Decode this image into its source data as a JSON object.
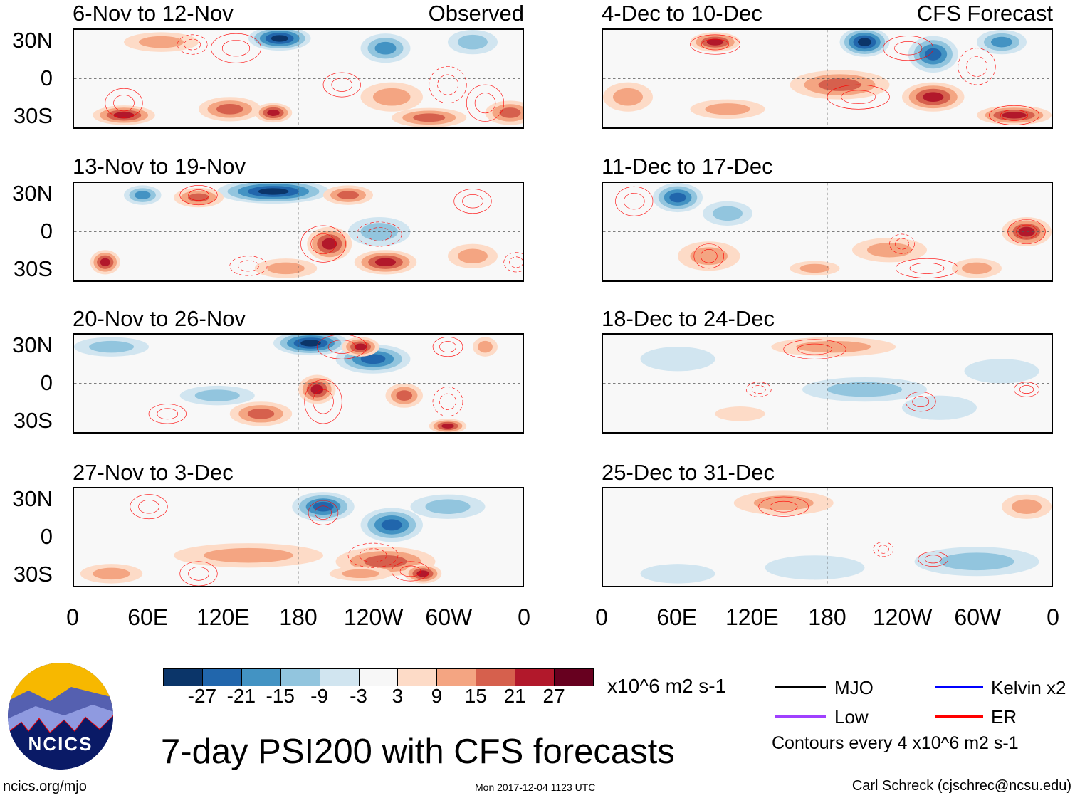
{
  "title": "7-day PSI200 with CFS forecasts",
  "footer": {
    "site": "ncics.org/mjo",
    "timestamp": "Mon 2017-12-04 1123 UTC",
    "author": "Carl Schreck (cjschrec@ncsu.edu)",
    "logo_text": "NCICS"
  },
  "axes": {
    "y_ticks": [
      "30N",
      "0",
      "30S"
    ],
    "x_ticks": [
      "0",
      "60E",
      "120E",
      "180",
      "120W",
      "60W",
      "0"
    ]
  },
  "column_labels": {
    "left": "Observed",
    "right": "CFS Forecast"
  },
  "colorbar": {
    "units": "x10^6 m2 s-1",
    "labels": [
      "-27",
      "-21",
      "-15",
      "-9",
      "-3",
      "3",
      "9",
      "15",
      "21",
      "27"
    ],
    "colors": [
      "#0b3569",
      "#2166ac",
      "#4393c3",
      "#92c5de",
      "#d1e5f0",
      "#f7f7f7",
      "#fddbc7",
      "#f4a582",
      "#d6604d",
      "#b2182b",
      "#67001f"
    ]
  },
  "legend": {
    "items": [
      {
        "label": "MJO",
        "color": "#000000"
      },
      {
        "label": "Kelvin x2",
        "color": "#0000ff"
      },
      {
        "label": "Low",
        "color": "#a040ff"
      },
      {
        "label": "ER",
        "color": "#ff0000"
      }
    ],
    "note": "Contours every 4 x10^6 m2 s-1"
  },
  "chart_data": {
    "type": "heatmap",
    "variable": "PSI200 anomaly",
    "lon_range": [
      0,
      360
    ],
    "lat_range": [
      -40,
      40
    ],
    "panels": [
      {
        "title": "6-Nov to 12-Nov",
        "column": "left",
        "anomalies": [
          [
            165,
            33,
            -28,
            25,
            10
          ],
          [
            250,
            25,
            -18,
            20,
            12
          ],
          [
            320,
            30,
            -15,
            20,
            10
          ],
          [
            40,
            -30,
            24,
            25,
            8
          ],
          [
            125,
            -25,
            20,
            25,
            10
          ],
          [
            160,
            -28,
            22,
            15,
            8
          ],
          [
            255,
            -15,
            14,
            25,
            12
          ],
          [
            285,
            -32,
            18,
            30,
            8
          ],
          [
            350,
            -28,
            16,
            20,
            10
          ],
          [
            70,
            30,
            10,
            30,
            8
          ]
        ],
        "contours": [
          [
            130,
            25,
            20,
            12,
            1
          ],
          [
            215,
            -5,
            15,
            10,
            1
          ],
          [
            40,
            -20,
            15,
            12,
            1
          ],
          [
            300,
            -5,
            15,
            15,
            -1
          ],
          [
            330,
            -20,
            15,
            15,
            1
          ],
          [
            95,
            28,
            12,
            8,
            -1
          ]
        ]
      },
      {
        "title": "13-Nov to 19-Nov",
        "column": "left",
        "anomalies": [
          [
            160,
            33,
            -30,
            45,
            10
          ],
          [
            55,
            30,
            -18,
            15,
            8
          ],
          [
            100,
            28,
            16,
            20,
            8
          ],
          [
            220,
            30,
            16,
            20,
            8
          ],
          [
            245,
            0,
            -12,
            25,
            12
          ],
          [
            205,
            -10,
            26,
            18,
            14
          ],
          [
            250,
            -25,
            22,
            25,
            10
          ],
          [
            25,
            -25,
            26,
            12,
            10
          ],
          [
            170,
            -30,
            14,
            25,
            8
          ],
          [
            320,
            -20,
            14,
            20,
            10
          ]
        ],
        "contours": [
          [
            100,
            30,
            15,
            8,
            1
          ],
          [
            200,
            -10,
            18,
            15,
            1
          ],
          [
            245,
            -2,
            18,
            10,
            -1
          ],
          [
            320,
            25,
            15,
            10,
            1
          ],
          [
            355,
            -25,
            10,
            8,
            -1
          ],
          [
            140,
            -28,
            15,
            8,
            -1
          ]
        ]
      },
      {
        "title": "20-Nov to 26-Nov",
        "column": "left",
        "anomalies": [
          [
            190,
            33,
            -30,
            30,
            10
          ],
          [
            240,
            20,
            -22,
            30,
            12
          ],
          [
            230,
            30,
            26,
            15,
            8
          ],
          [
            115,
            -10,
            -10,
            30,
            8
          ],
          [
            195,
            -5,
            22,
            15,
            12
          ],
          [
            265,
            -10,
            20,
            15,
            10
          ],
          [
            150,
            -25,
            20,
            25,
            10
          ],
          [
            300,
            -35,
            22,
            15,
            6
          ],
          [
            30,
            30,
            -12,
            30,
            8
          ],
          [
            330,
            30,
            12,
            10,
            8
          ]
        ],
        "contours": [
          [
            215,
            30,
            20,
            10,
            1
          ],
          [
            200,
            -15,
            15,
            18,
            1
          ],
          [
            75,
            -25,
            15,
            8,
            1
          ],
          [
            300,
            30,
            12,
            8,
            1
          ],
          [
            300,
            -15,
            12,
            12,
            -1
          ]
        ]
      },
      {
        "title": "27-Nov to 3-Dec",
        "column": "left",
        "anomalies": [
          [
            200,
            25,
            -22,
            25,
            12
          ],
          [
            255,
            10,
            -24,
            25,
            14
          ],
          [
            300,
            25,
            -12,
            30,
            10
          ],
          [
            140,
            -15,
            14,
            60,
            10
          ],
          [
            250,
            -20,
            18,
            40,
            12
          ],
          [
            280,
            -30,
            24,
            15,
            8
          ],
          [
            30,
            -30,
            14,
            25,
            8
          ],
          [
            230,
            -30,
            10,
            25,
            6
          ]
        ],
        "contours": [
          [
            200,
            20,
            12,
            10,
            1
          ],
          [
            100,
            -30,
            15,
            10,
            1
          ],
          [
            270,
            -28,
            15,
            8,
            1
          ],
          [
            60,
            25,
            15,
            10,
            1
          ],
          [
            240,
            -15,
            20,
            10,
            -1
          ]
        ]
      },
      {
        "title": "4-Dec to 10-Dec",
        "column": "right",
        "anomalies": [
          [
            90,
            30,
            24,
            20,
            8
          ],
          [
            210,
            30,
            -30,
            20,
            12
          ],
          [
            265,
            20,
            -22,
            20,
            15
          ],
          [
            320,
            30,
            -20,
            20,
            10
          ],
          [
            190,
            -5,
            16,
            40,
            12
          ],
          [
            265,
            -15,
            22,
            25,
            12
          ],
          [
            330,
            -30,
            26,
            30,
            8
          ],
          [
            100,
            -25,
            14,
            30,
            8
          ],
          [
            20,
            -15,
            14,
            20,
            12
          ]
        ],
        "contours": [
          [
            90,
            28,
            20,
            8,
            1
          ],
          [
            245,
            25,
            20,
            10,
            1
          ],
          [
            205,
            -15,
            25,
            10,
            1
          ],
          [
            330,
            -30,
            20,
            8,
            1
          ],
          [
            300,
            10,
            15,
            15,
            -1
          ]
        ]
      },
      {
        "title": "11-Dec to 17-Dec",
        "column": "right",
        "anomalies": [
          [
            60,
            28,
            -26,
            20,
            12
          ],
          [
            100,
            15,
            -10,
            20,
            10
          ],
          [
            85,
            -20,
            14,
            25,
            12
          ],
          [
            230,
            -15,
            10,
            30,
            10
          ],
          [
            340,
            0,
            22,
            20,
            12
          ],
          [
            300,
            -30,
            14,
            20,
            8
          ],
          [
            170,
            -30,
            10,
            20,
            6
          ]
        ],
        "contours": [
          [
            25,
            25,
            15,
            12,
            1
          ],
          [
            85,
            -20,
            12,
            10,
            1
          ],
          [
            340,
            0,
            15,
            10,
            1
          ],
          [
            260,
            -30,
            25,
            8,
            1
          ],
          [
            240,
            -10,
            10,
            8,
            -1
          ]
        ]
      },
      {
        "title": "18-Dec to 24-Dec",
        "column": "right",
        "anomalies": [
          [
            185,
            30,
            14,
            50,
            8
          ],
          [
            60,
            20,
            -8,
            30,
            10
          ],
          [
            210,
            -5,
            -10,
            50,
            10
          ],
          [
            320,
            10,
            -6,
            30,
            10
          ],
          [
            270,
            -20,
            -8,
            30,
            10
          ],
          [
            110,
            -25,
            8,
            20,
            6
          ]
        ],
        "contours": [
          [
            170,
            28,
            25,
            8,
            1
          ],
          [
            255,
            -15,
            12,
            8,
            1
          ],
          [
            340,
            -5,
            10,
            6,
            1
          ],
          [
            125,
            -5,
            10,
            6,
            -1
          ]
        ]
      },
      {
        "title": "25-Dec to 31-Dec",
        "column": "right",
        "anomalies": [
          [
            145,
            28,
            10,
            40,
            10
          ],
          [
            340,
            25,
            10,
            20,
            10
          ],
          [
            300,
            -20,
            -10,
            50,
            12
          ],
          [
            170,
            -25,
            -6,
            40,
            10
          ],
          [
            60,
            -30,
            -6,
            30,
            8
          ]
        ],
        "contours": [
          [
            145,
            25,
            20,
            8,
            1
          ],
          [
            265,
            -18,
            12,
            6,
            1
          ],
          [
            225,
            -10,
            8,
            6,
            -1
          ]
        ]
      }
    ]
  }
}
